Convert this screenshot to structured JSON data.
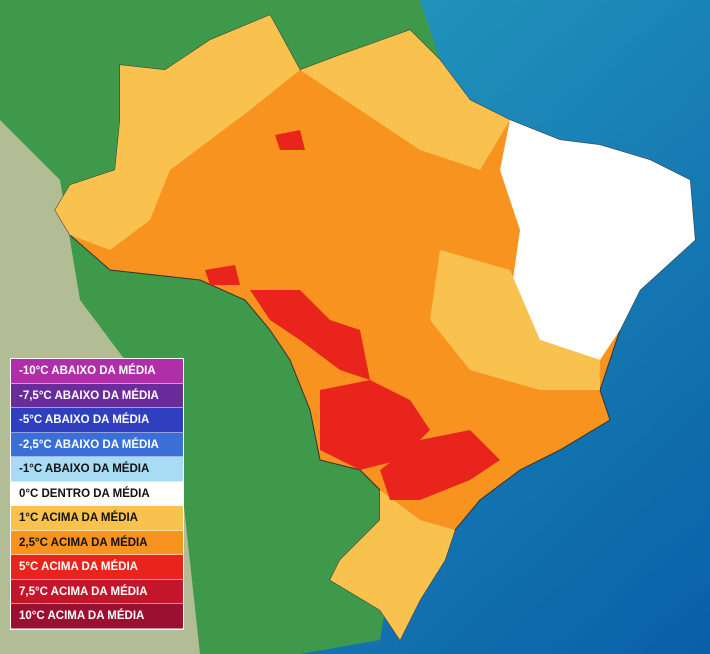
{
  "legend": {
    "items": [
      {
        "label": "-10°C ABAIXO DA MÉDIA",
        "color": "#b02fa8"
      },
      {
        "label": "-7,5°C ABAIXO DA MÉDIA",
        "color": "#6a2c9a"
      },
      {
        "label": "-5°C ABAIXO DA MÉDIA",
        "color": "#2f3fbf"
      },
      {
        "label": "-2,5°C ABAIXO DA MÉDIA",
        "color": "#3a6fd8"
      },
      {
        "label": "-1°C ABAIXO DA MÉDIA",
        "color": "#a8dcf5"
      },
      {
        "label": "0°C DENTRO DA MÉDIA",
        "color": "#ffffff"
      },
      {
        "label": "1°C ACIMA DA MÉDIA",
        "color": "#f9c24e"
      },
      {
        "label": "2,5°C ACIMA DA MÉDIA",
        "color": "#f7931e"
      },
      {
        "label": "5°C ACIMA DA MÉDIA",
        "color": "#e8241d"
      },
      {
        "label": "7,5°C ACIMA DA MÉDIA",
        "color": "#c4162a"
      },
      {
        "label": "10°C ACIMA DA MÉDIA",
        "color": "#9b1030"
      }
    ]
  }
}
